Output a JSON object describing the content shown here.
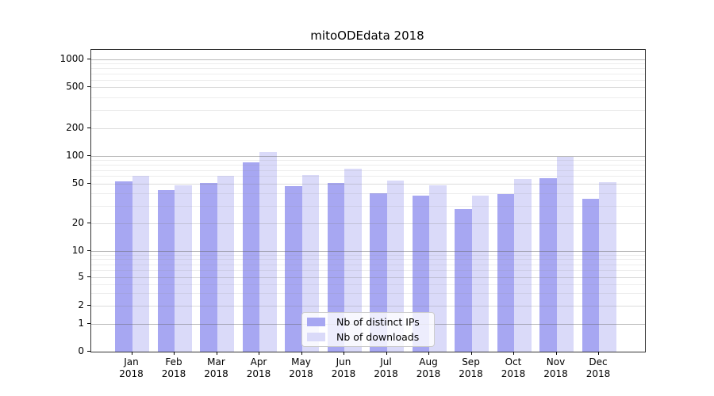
{
  "title": "mitoODEdata 2018",
  "legend": {
    "position": "lower center",
    "items": [
      {
        "label": "Nb of distinct IPs",
        "color": "#a7a7f2"
      },
      {
        "label": "Nb of downloads",
        "color": "#dadaf9"
      }
    ]
  },
  "colors": {
    "background": "#ffffff",
    "axis_spine": "#333333",
    "bar_ips": "#a7a7f2",
    "bar_downloads": "#dadaf9"
  },
  "chart_data": {
    "type": "bar",
    "title": "mitoODEdata 2018",
    "categories": [
      "Jan 2018",
      "Feb 2018",
      "Mar 2018",
      "Apr 2018",
      "May 2018",
      "Jun 2018",
      "Jul 2018",
      "Aug 2018",
      "Sep 2018",
      "Oct 2018",
      "Nov 2018",
      "Dec 2018"
    ],
    "series": [
      {
        "name": "Nb of distinct IPs",
        "color": "#a7a7f2",
        "values": [
          53,
          43,
          51,
          85,
          47,
          51,
          40,
          38,
          28,
          39,
          57,
          35
        ]
      },
      {
        "name": "Nb of downloads",
        "color": "#dadaf9",
        "values": [
          60,
          48,
          60,
          109,
          62,
          72,
          54,
          48,
          38,
          56,
          98,
          52
        ]
      }
    ],
    "xlabel": "",
    "ylabel": "",
    "ylim": [
      0,
      1270
    ],
    "grid": true,
    "legend_position": "lower center",
    "y_axis": {
      "scale": "symlog",
      "ticks": [
        {
          "v": 0,
          "frac": 1.0
        },
        {
          "v": 1,
          "frac": 0.908
        },
        {
          "v": 2,
          "frac": 0.8478
        },
        {
          "v": 5,
          "frac": 0.7533
        },
        {
          "v": 10,
          "frac": 0.6659
        },
        {
          "v": 20,
          "frac": 0.5748
        },
        {
          "v": 50,
          "frac": 0.4428
        },
        {
          "v": 100,
          "frac": 0.3509
        },
        {
          "v": 200,
          "frac": 0.2598
        },
        {
          "v": 500,
          "frac": 0.1234
        },
        {
          "v": 1000,
          "frac": 0.0315
        }
      ],
      "major_gridlines": [
        1,
        10,
        100,
        1000
      ],
      "minor_gridlines": [
        3,
        4,
        6,
        7,
        8,
        9,
        30,
        40,
        60,
        70,
        80,
        90,
        300,
        400,
        600,
        700,
        800,
        900
      ]
    }
  }
}
